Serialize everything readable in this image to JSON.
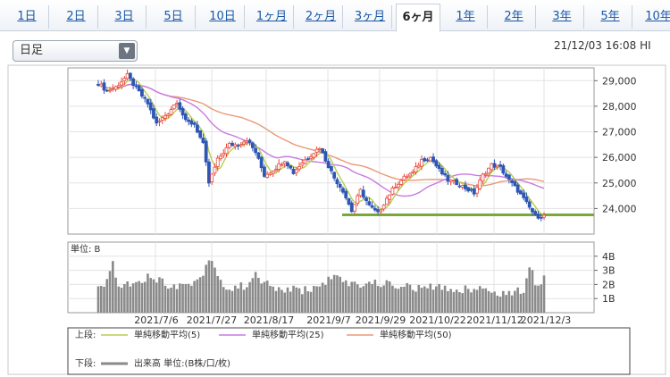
{
  "tabs": [
    {
      "label": "1日",
      "active": false
    },
    {
      "label": "2日",
      "active": false
    },
    {
      "label": "3日",
      "active": false
    },
    {
      "label": "5日",
      "active": false
    },
    {
      "label": "10日",
      "active": false
    },
    {
      "label": "1ヶ月",
      "active": false
    },
    {
      "label": "2ヶ月",
      "active": false
    },
    {
      "label": "3ヶ月",
      "active": false
    },
    {
      "label": "6ヶ月",
      "active": true
    },
    {
      "label": "1年",
      "active": false
    },
    {
      "label": "2年",
      "active": false
    },
    {
      "label": "3年",
      "active": false
    },
    {
      "label": "5年",
      "active": false
    },
    {
      "label": "10年",
      "active": false
    }
  ],
  "period_select": {
    "value": "日足"
  },
  "timestamp": "21/12/03 16:08 HI",
  "chart_data": {
    "type": "candlestick",
    "price_axis": {
      "ticks": [
        "29,000",
        "28,000",
        "27,000",
        "26,000",
        "25,000",
        "24,000"
      ],
      "values": [
        29000,
        28000,
        27000,
        26000,
        25000,
        24000
      ],
      "ylim": [
        23000,
        29500
      ]
    },
    "volume_axis": {
      "unit_label": "単位: B",
      "ticks": [
        "4B",
        "3B",
        "2B",
        "1B"
      ],
      "values": [
        4,
        3,
        2,
        1
      ],
      "ylim": [
        0,
        5
      ]
    },
    "x_tick_labels": [
      "2021/7/6",
      "2021/7/27",
      "2021/8/17",
      "2021/9/7",
      "2021/9/29",
      "2021/10/22",
      "2021/11/12",
      "2021/12/3"
    ],
    "price_anchor_path": [
      [
        0,
        28900
      ],
      [
        3,
        28600
      ],
      [
        6,
        28750
      ],
      [
        10,
        29200
      ],
      [
        13,
        28700
      ],
      [
        17,
        28100
      ],
      [
        20,
        27300
      ],
      [
        24,
        27750
      ],
      [
        27,
        28200
      ],
      [
        30,
        27400
      ],
      [
        33,
        27300
      ],
      [
        36,
        26500
      ],
      [
        38,
        25000
      ],
      [
        41,
        25900
      ],
      [
        45,
        26500
      ],
      [
        48,
        26500
      ],
      [
        51,
        26700
      ],
      [
        54,
        26200
      ],
      [
        57,
        25300
      ],
      [
        60,
        25500
      ],
      [
        64,
        25900
      ],
      [
        67,
        25400
      ],
      [
        70,
        25800
      ],
      [
        73,
        26100
      ],
      [
        76,
        26400
      ],
      [
        78,
        25900
      ],
      [
        81,
        25200
      ],
      [
        84,
        24700
      ],
      [
        87,
        23900
      ],
      [
        90,
        24700
      ],
      [
        93,
        24100
      ],
      [
        96,
        23800
      ],
      [
        99,
        24400
      ],
      [
        102,
        24900
      ],
      [
        105,
        25200
      ],
      [
        108,
        25400
      ],
      [
        111,
        25900
      ],
      [
        114,
        26000
      ],
      [
        117,
        25500
      ],
      [
        120,
        25100
      ],
      [
        123,
        25000
      ],
      [
        126,
        24800
      ],
      [
        129,
        24600
      ],
      [
        132,
        25300
      ],
      [
        135,
        25700
      ],
      [
        138,
        25600
      ],
      [
        141,
        25100
      ],
      [
        144,
        24700
      ],
      [
        147,
        24200
      ],
      [
        150,
        23700
      ],
      [
        153,
        23700
      ]
    ],
    "volume_anchor_path": [
      [
        0,
        1.9
      ],
      [
        3,
        2.1
      ],
      [
        5,
        3.6
      ],
      [
        7,
        1.8
      ],
      [
        12,
        2.2
      ],
      [
        18,
        2.6
      ],
      [
        24,
        2.0
      ],
      [
        30,
        1.9
      ],
      [
        36,
        2.6
      ],
      [
        38,
        4.0
      ],
      [
        40,
        3.2
      ],
      [
        44,
        1.6
      ],
      [
        50,
        1.9
      ],
      [
        54,
        2.6
      ],
      [
        60,
        1.7
      ],
      [
        70,
        1.6
      ],
      [
        76,
        1.8
      ],
      [
        80,
        2.6
      ],
      [
        86,
        2.0
      ],
      [
        96,
        2.1
      ],
      [
        104,
        1.9
      ],
      [
        110,
        1.7
      ],
      [
        116,
        1.8
      ],
      [
        124,
        1.6
      ],
      [
        130,
        1.8
      ],
      [
        136,
        1.4
      ],
      [
        142,
        1.4
      ],
      [
        146,
        1.6
      ],
      [
        148,
        3.5
      ],
      [
        150,
        2.2
      ],
      [
        152,
        2.2
      ],
      [
        153,
        2.9
      ]
    ],
    "support_line": {
      "value": 23750,
      "color": "#7aa93a"
    },
    "series": [
      {
        "name": "単純移動平均(5)",
        "color": "#b5cf4f",
        "period": 5
      },
      {
        "name": "単純移動平均(25)",
        "color": "#c77be0",
        "period": 25
      },
      {
        "name": "単純移動平均(50)",
        "color": "#e89a78",
        "period": 50
      }
    ],
    "legend": {
      "upper_label": "上段:",
      "lower_label": "下段:",
      "ma5": "単純移動平均(5)",
      "ma25": "単純移動平均(25)",
      "ma50": "単純移動平均(50)",
      "volume": "出来高 単位:(B株/口/枚)"
    },
    "up_color": "#e8463a",
    "down_color": "#2f56b5",
    "volume_color": "#8a8a8a"
  }
}
